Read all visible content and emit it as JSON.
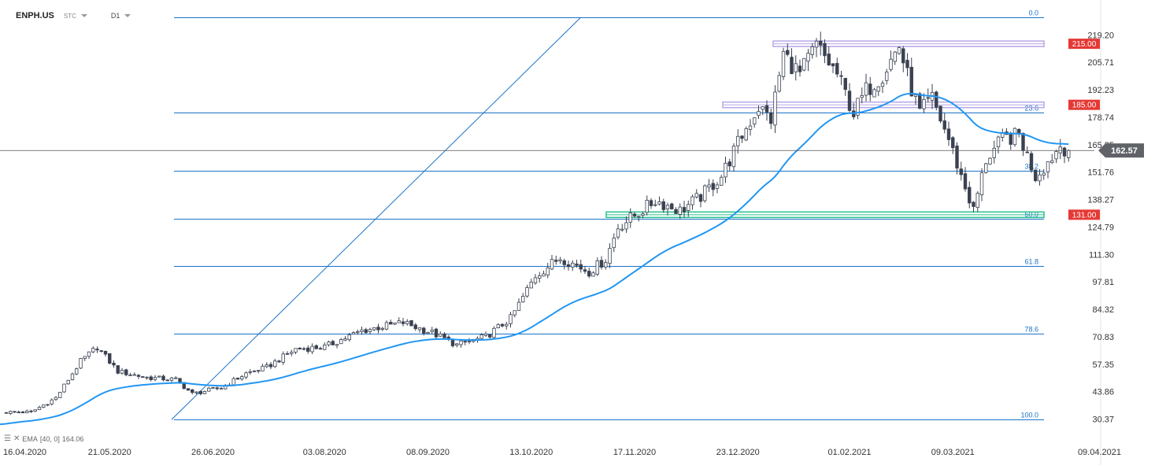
{
  "header": {
    "symbol": "ENPH.US",
    "mode": "STC",
    "timeframe": "D1"
  },
  "indicator": {
    "label": "EMA",
    "params": "[40, 0]",
    "value": "164.06"
  },
  "colors": {
    "bull": "#ffffff",
    "bear": "#3a4150",
    "ema": "#2196f3",
    "fib": "#1a73c8",
    "red_label": "#e53935",
    "purple_zone": "#b7a7e6",
    "green_zone": "#26c08a"
  },
  "chart_data": {
    "type": "candlestick",
    "title": "",
    "ylim": [
      25.0,
      228.0
    ],
    "y_ticks": [
      "219.20",
      "205.71",
      "192.23",
      "178.74",
      "165.25",
      "151.76",
      "138.27",
      "124.79",
      "111.30",
      "97.81",
      "84.32",
      "70.83",
      "57.35",
      "43.86",
      "30.37"
    ],
    "x_ticks": [
      "16.04.2020",
      "21.05.2020",
      "26.06.2020",
      "03.08.2020",
      "08.09.2020",
      "13.10.2020",
      "17.11.2020",
      "23.12.2020",
      "01.02.2021",
      "09.03.2021",
      "09.04.2021"
    ],
    "x_tick_bar_index": [
      0,
      25,
      50,
      77,
      102,
      127,
      152,
      177,
      204,
      229,
      250
    ],
    "last_price": "162.57",
    "horizontal_levels": [
      {
        "label": "215.00",
        "value": 215.0,
        "zone": "purple"
      },
      {
        "label": "185.00",
        "value": 185.0,
        "zone": "purple"
      },
      {
        "label": "131.00",
        "value": 131.0,
        "zone": "green"
      }
    ],
    "fibonacci": {
      "price_0": 228.0,
      "price_100": 30.37,
      "levels": [
        {
          "label": "0.0",
          "ratio": 0.0
        },
        {
          "label": "23.6",
          "ratio": 0.236
        },
        {
          "label": "38.2",
          "ratio": 0.382
        },
        {
          "label": "50.0",
          "ratio": 0.5
        },
        {
          "label": "61.8",
          "ratio": 0.618
        },
        {
          "label": "78.6",
          "ratio": 0.786
        },
        {
          "label": "100.0",
          "ratio": 1.0
        }
      ]
    },
    "trendline": {
      "bar_start": 40,
      "price_start": 30.37,
      "bar_end": 139,
      "price_end": 228.0
    },
    "anchors": [
      [
        0,
        34
      ],
      [
        6,
        34
      ],
      [
        12,
        41
      ],
      [
        18,
        59
      ],
      [
        22,
        66
      ],
      [
        27,
        54
      ],
      [
        34,
        51
      ],
      [
        41,
        50
      ],
      [
        45,
        43
      ],
      [
        52,
        46
      ],
      [
        58,
        53
      ],
      [
        63,
        56
      ],
      [
        70,
        65
      ],
      [
        77,
        66
      ],
      [
        86,
        74
      ],
      [
        96,
        78
      ],
      [
        103,
        73
      ],
      [
        109,
        67
      ],
      [
        116,
        71
      ],
      [
        122,
        80
      ],
      [
        128,
        101
      ],
      [
        134,
        110
      ],
      [
        141,
        103
      ],
      [
        145,
        109
      ],
      [
        148,
        125
      ],
      [
        153,
        132
      ],
      [
        157,
        138
      ],
      [
        163,
        133
      ],
      [
        168,
        140
      ],
      [
        173,
        150
      ],
      [
        178,
        170
      ],
      [
        182,
        184
      ],
      [
        185,
        178
      ],
      [
        188,
        210
      ],
      [
        192,
        200
      ],
      [
        196,
        214
      ],
      [
        201,
        200
      ],
      [
        205,
        181
      ],
      [
        208,
        192
      ],
      [
        212,
        200
      ],
      [
        216,
        214
      ],
      [
        218,
        199
      ],
      [
        221,
        181
      ],
      [
        224,
        188
      ],
      [
        228,
        168
      ],
      [
        231,
        150
      ],
      [
        234,
        133
      ],
      [
        237,
        158
      ],
      [
        241,
        168
      ],
      [
        245,
        170
      ],
      [
        249,
        150
      ],
      [
        252,
        157
      ],
      [
        255,
        165
      ],
      [
        257,
        162.57
      ]
    ],
    "ema": {
      "label": "EMA",
      "period": 40,
      "value": 164.06
    }
  }
}
